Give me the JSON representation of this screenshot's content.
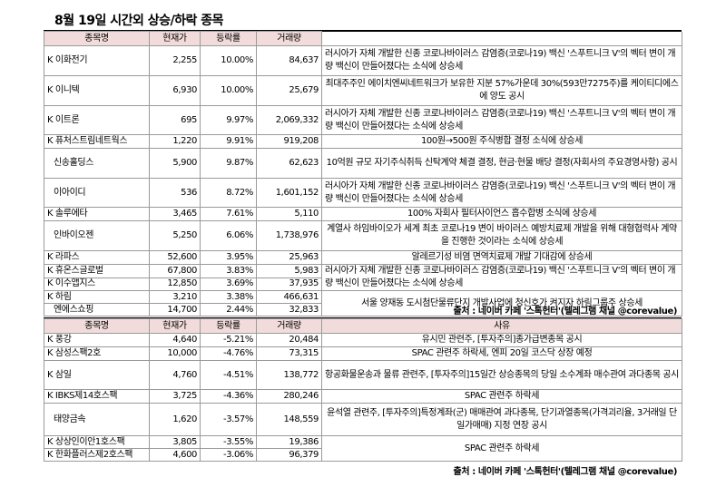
{
  "title": "8월 19일  시간외 상승/하락 종목",
  "headers": {
    "name": "종목명",
    "price": "현재가",
    "change": "등락률",
    "volume": "거래량",
    "reason": "사유"
  },
  "gainers": [
    {
      "name": "K 이화전기",
      "price": "2,255",
      "change": "10.00%",
      "volume": "84,637"
    },
    {
      "name": "K 이니텍",
      "price": "6,930",
      "change": "10.00%",
      "volume": "25,679"
    },
    {
      "name": "K 이트론",
      "price": "695",
      "change": "9.97%",
      "volume": "2,069,332"
    },
    {
      "name": "K 퓨처스트림네트웍스",
      "price": "1,220",
      "change": "9.91%",
      "volume": "919,208"
    },
    {
      "name": "신송홀딩스",
      "price": "5,900",
      "change": "9.87%",
      "volume": "62,623"
    },
    {
      "name": "이아이디",
      "price": "536",
      "change": "8.72%",
      "volume": "1,601,152"
    },
    {
      "name": "K 솔루에타",
      "price": "3,465",
      "change": "7.61%",
      "volume": "5,110"
    },
    {
      "name": "인바이오젠",
      "price": "5,250",
      "change": "6.06%",
      "volume": "1,738,976"
    },
    {
      "name": "K 라파스",
      "price": "52,600",
      "change": "3.95%",
      "volume": "25,963"
    },
    {
      "name": "K 휴온스글로벌",
      "price": "67,800",
      "change": "3.83%",
      "volume": "5,983"
    },
    {
      "name": "K 이수앱지스",
      "price": "12,850",
      "change": "3.69%",
      "volume": "37,935"
    },
    {
      "name": "K 하림",
      "price": "3,210",
      "change": "3.38%",
      "volume": "466,631"
    },
    {
      "name": "엔에스쇼핑",
      "price": "14,700",
      "change": "2.44%",
      "volume": "32,833"
    }
  ],
  "gainer_reasons": {
    "r1": "러시아가 자체 개발한 신종 코로나바이러스 감염증(코로나19) 백신 '스푸트니크 V'의 벡터 변이 개량 백신이 만들어졌다는 소식에 상승세",
    "r2": "최대주주인 에이치엔씨네트워크가 보유한 지분 57%가운데 30%(593만7275주)를 케이티디에스에 양도 공시",
    "r3": "러시아가 자체 개발한 신종 코로나바이러스 감염증(코로나19) 백신 '스푸트니크 V'의 벡터 변이 개량 백신이 만들어졌다는 소식에 상승세",
    "r4": "100원→500원 주식병합 결정 소식에 상승세",
    "r5": "10억원 규모 자기주식취득 신탁계약 체결 결정, 현금·현물 배당 결정(자회사의 주요경영사항) 공시",
    "r6": "러시아가 자체 개발한 신종 코로나바이러스 감염증(코로나19) 백신 '스푸트니크 V'의 벡터 변이 개량 백신이 만들어졌다는 소식에 상승세",
    "r7": "100% 자회사 필터사이언스 흡수합병 소식에 상승세",
    "r8": "계열사 하임바이오가 세계 최초 코로나19 변이 바이러스 예방치료제 개발을 위해 대형협력사 계약을 진행한 것이라는 소식에 상승세",
    "r9": "알레르기성 비염 면역치료제 개발 기대감에 상승세",
    "r10": "러시아가 자체 개발한 신종 코로나바이러스 감염증(코로나19) 백신 '스푸트니크 V'의 벡터 변이 개량 백신이 만들어졌다는 소식에 상승세",
    "r11": "서울 양재동 도시첨단물류단지 개발사업에 청신호가 켜지자 하림그룹주 상승세"
  },
  "source1": "출처 : 네이버 카페 '스톡헌터'(텔레그램 채널 @corevalue)",
  "losers": [
    {
      "name": "K 풍강",
      "price": "4,640",
      "change": "-5.21%",
      "volume": "20,484"
    },
    {
      "name": "K 삼성스팩2호",
      "price": "10,000",
      "change": "-4.76%",
      "volume": "73,315"
    },
    {
      "name": "K 삼일",
      "price": "4,760",
      "change": "-4.51%",
      "volume": "138,772"
    },
    {
      "name": "K IBKS제14호스팩",
      "price": "3,725",
      "change": "-4.36%",
      "volume": "280,246"
    },
    {
      "name": "태양금속",
      "price": "1,620",
      "change": "-3.57%",
      "volume": "148,559"
    },
    {
      "name": "K 상상인이안1호스팩",
      "price": "3,805",
      "change": "-3.55%",
      "volume": "19,386"
    },
    {
      "name": "K 한화플러스제2호스팩",
      "price": "4,600",
      "change": "-3.06%",
      "volume": "96,379"
    }
  ],
  "loser_reasons": {
    "l1": "유시민 관련주, [투자주의]종가급변종목 공시",
    "l2": "SPAC 관련주 하락세, 엔피 20일 코스닥 상장 예정",
    "l3": "항공화물운송과 물류 관련주, [투자주의]15일간 상승종목의 당일 소수계좌 매수관여 과다종목 공시",
    "l4": "SPAC 관련주 하락세",
    "l5": "윤석열 관련주, [투자주의]특정계좌(군) 매매관여 과다종목, 단기과열종목(가격괴리율, 3거래일 단일가매매) 지정 연장 공시",
    "l6": "SPAC 관련주 하락세"
  },
  "source2": "출처 : 네이버 카페 '스톡헌터'(텔레그램 채널 @corevalue)"
}
